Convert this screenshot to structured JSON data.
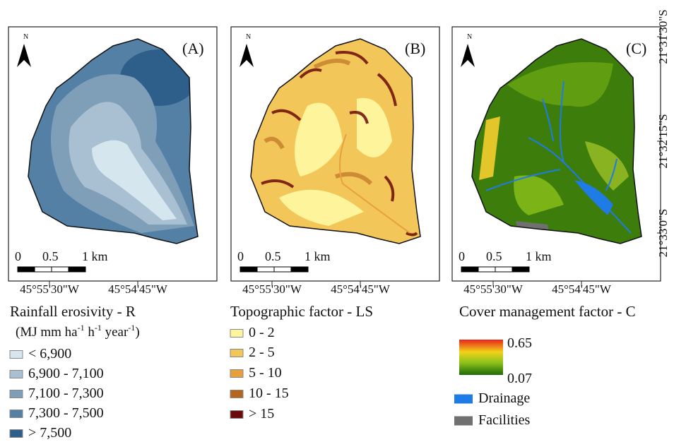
{
  "panels": [
    {
      "label": "(A)",
      "north": "N",
      "scale": [
        "0",
        "0.5",
        "1 km"
      ],
      "longitudes": [
        "45°55'30\"W",
        "45°54'45\"W"
      ]
    },
    {
      "label": "(B)",
      "north": "N",
      "scale": [
        "0",
        "0.5",
        "1 km"
      ],
      "longitudes": [
        "45°55'30\"W",
        "45°54'45\"W"
      ]
    },
    {
      "label": "(C)",
      "north": "N",
      "scale": [
        "0",
        "0.5",
        "1 km"
      ],
      "longitudes": [
        "45°55'30\"W",
        "45°54'45\"W"
      ]
    }
  ],
  "latitudes": [
    "21°31'30\"S",
    "21°32'15\"S",
    "21°33'0\"S"
  ],
  "legends": {
    "rainfall": {
      "title": "Rainfall erosivity - R",
      "unit": [
        "(MJ mm ha",
        "-1",
        " h",
        "-1",
        " year",
        "-1",
        ")"
      ],
      "items": [
        {
          "label": "< 6,900",
          "color": "#d6e6ee"
        },
        {
          "label": "6,900 - 7,100",
          "color": "#a9c0d3"
        },
        {
          "label": "7,100 - 7,300",
          "color": "#7f9fb9"
        },
        {
          "label": "7,300 - 7,500",
          "color": "#5580a6"
        },
        {
          "label": "> 7,500",
          "color": "#2e5f8a"
        }
      ]
    },
    "topographic": {
      "title": "Topographic factor - LS",
      "items": [
        {
          "label": "0 - 2",
          "color": "#fdf49b"
        },
        {
          "label": "2 - 5",
          "color": "#f3c65a"
        },
        {
          "label": "5 - 10",
          "color": "#e8a03c"
        },
        {
          "label": "10 - 15",
          "color": "#b5651d"
        },
        {
          "label": "> 15",
          "color": "#6b0a0a"
        }
      ]
    },
    "cover": {
      "title": "Cover management factor - C",
      "max": "0.65",
      "min": "0.07",
      "items": [
        {
          "label": "Drainage",
          "color": "#1f7be6"
        },
        {
          "label": "Facilities",
          "color": "#707070"
        }
      ]
    }
  }
}
